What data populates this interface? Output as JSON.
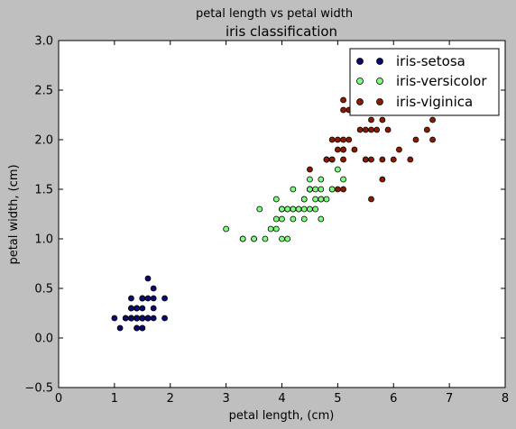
{
  "chart_data": {
    "type": "scatter",
    "suptitle": "petal length vs petal width",
    "title": "iris classification",
    "xlabel": "petal length, (cm)",
    "ylabel": "petal width, (cm)",
    "xlim": [
      0,
      8
    ],
    "ylim": [
      -0.5,
      3.0
    ],
    "x_ticks": [
      0,
      1,
      2,
      3,
      4,
      5,
      6,
      7,
      8
    ],
    "y_ticks": [
      -0.5,
      0.0,
      0.5,
      1.0,
      1.5,
      2.0,
      2.5,
      3.0
    ],
    "x_tick_labels": [
      "0",
      "1",
      "2",
      "3",
      "4",
      "5",
      "6",
      "7",
      "8"
    ],
    "y_tick_labels": [
      "−0.5",
      "0.0",
      "0.5",
      "1.0",
      "1.5",
      "2.0",
      "2.5",
      "3.0"
    ],
    "grid": false,
    "legend_position": "top-right",
    "series": [
      {
        "name": "iris-setosa",
        "color": "#0a0a6e",
        "x": [
          1.4,
          1.4,
          1.3,
          1.5,
          1.4,
          1.7,
          1.4,
          1.5,
          1.4,
          1.5,
          1.5,
          1.6,
          1.4,
          1.1,
          1.2,
          1.5,
          1.3,
          1.4,
          1.7,
          1.5,
          1.7,
          1.5,
          1.0,
          1.7,
          1.9,
          1.6,
          1.6,
          1.5,
          1.4,
          1.6,
          1.6,
          1.5,
          1.5,
          1.4,
          1.5,
          1.2,
          1.3,
          1.4,
          1.3,
          1.5,
          1.3,
          1.3,
          1.3,
          1.6,
          1.9,
          1.4,
          1.6,
          1.4,
          1.5,
          1.4
        ],
        "y": [
          0.2,
          0.2,
          0.2,
          0.2,
          0.2,
          0.4,
          0.3,
          0.2,
          0.2,
          0.1,
          0.2,
          0.2,
          0.1,
          0.1,
          0.2,
          0.4,
          0.4,
          0.3,
          0.3,
          0.3,
          0.2,
          0.4,
          0.2,
          0.5,
          0.2,
          0.2,
          0.4,
          0.2,
          0.2,
          0.2,
          0.2,
          0.4,
          0.1,
          0.2,
          0.2,
          0.2,
          0.2,
          0.1,
          0.2,
          0.2,
          0.3,
          0.3,
          0.2,
          0.6,
          0.4,
          0.3,
          0.2,
          0.2,
          0.2,
          0.2
        ]
      },
      {
        "name": "iris-versicolor",
        "color": "#7dfc7d",
        "x": [
          4.7,
          4.5,
          4.9,
          4.0,
          4.6,
          4.5,
          4.7,
          3.3,
          4.6,
          3.9,
          3.5,
          4.2,
          4.0,
          4.7,
          3.6,
          4.4,
          4.5,
          4.1,
          4.5,
          3.9,
          4.8,
          4.0,
          4.9,
          4.7,
          4.3,
          4.4,
          4.8,
          5.0,
          4.5,
          3.5,
          3.8,
          3.7,
          3.9,
          5.1,
          4.5,
          4.5,
          4.7,
          4.4,
          4.1,
          4.0,
          4.4,
          4.6,
          4.0,
          3.3,
          4.2,
          4.2,
          4.2,
          4.3,
          3.0,
          4.1
        ],
        "y": [
          1.4,
          1.5,
          1.5,
          1.3,
          1.5,
          1.3,
          1.6,
          1.0,
          1.3,
          1.4,
          1.0,
          1.5,
          1.0,
          1.4,
          1.3,
          1.4,
          1.5,
          1.0,
          1.5,
          1.1,
          1.8,
          1.3,
          1.5,
          1.2,
          1.3,
          1.4,
          1.4,
          1.7,
          1.5,
          1.0,
          1.1,
          1.0,
          1.2,
          1.6,
          1.5,
          1.6,
          1.5,
          1.3,
          1.3,
          1.3,
          1.2,
          1.4,
          1.2,
          1.0,
          1.3,
          1.2,
          1.3,
          1.3,
          1.1,
          1.3
        ]
      },
      {
        "name": "iris-viginica",
        "color": "#8b1a00",
        "x": [
          6.0,
          5.1,
          5.9,
          5.6,
          5.8,
          6.6,
          4.5,
          6.3,
          5.8,
          6.1,
          5.1,
          5.3,
          5.5,
          5.0,
          5.1,
          5.3,
          5.5,
          6.7,
          6.9,
          5.0,
          5.7,
          4.9,
          6.7,
          4.9,
          5.7,
          6.0,
          4.8,
          4.9,
          5.6,
          5.8,
          6.1,
          6.4,
          5.6,
          5.1,
          5.6,
          6.1,
          5.6,
          5.5,
          4.8,
          5.4,
          5.6,
          5.1,
          5.1,
          5.9,
          5.7,
          5.2,
          5.0,
          5.2,
          5.4,
          5.1
        ],
        "y": [
          2.5,
          1.9,
          2.1,
          1.8,
          2.2,
          2.1,
          1.7,
          1.8,
          1.8,
          2.5,
          2.0,
          1.9,
          2.1,
          2.0,
          2.4,
          2.3,
          1.8,
          2.2,
          2.3,
          1.5,
          2.3,
          2.0,
          2.0,
          1.8,
          2.1,
          1.8,
          1.8,
          1.8,
          2.1,
          1.6,
          1.9,
          2.0,
          2.2,
          1.5,
          1.4,
          2.3,
          2.4,
          1.8,
          1.8,
          2.1,
          2.4,
          2.3,
          1.9,
          2.3,
          2.5,
          2.3,
          1.9,
          2.0,
          2.3,
          1.8
        ]
      }
    ]
  }
}
